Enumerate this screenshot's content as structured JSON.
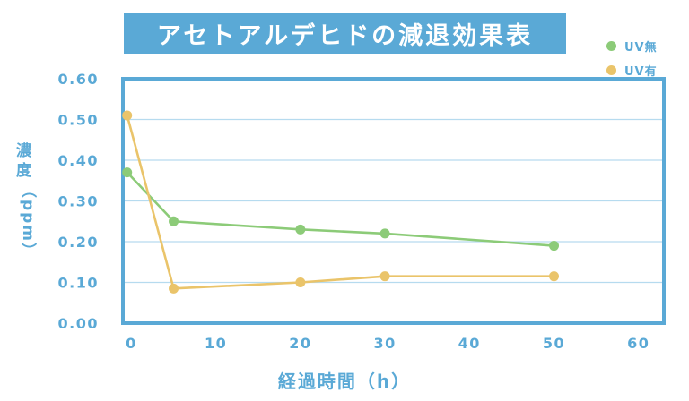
{
  "chart_data": {
    "type": "line",
    "title": "アセトアルデヒドの減退効果表",
    "xlabel": "経過時間（h）",
    "ylabel": {
      "main": "濃度",
      "unit": "（ppm）"
    },
    "xlim": [
      -1,
      63
    ],
    "ylim": [
      0,
      0.6
    ],
    "x_ticks": [
      0,
      10,
      20,
      30,
      40,
      50,
      60
    ],
    "x_tick_labels": [
      "0",
      "10",
      "20",
      "30",
      "40",
      "50",
      "60"
    ],
    "y_ticks": [
      0,
      0.1,
      0.2,
      0.3,
      0.4,
      0.5,
      0.6
    ],
    "y_tick_labels": [
      "0.00",
      "0.10",
      "0.20",
      "0.30",
      "0.40",
      "0.50",
      "0.60"
    ],
    "grid": "horizontal",
    "legend_position": "top-right",
    "series": [
      {
        "name": "UV無",
        "color": "#8ccb78",
        "x": [
          -0.5,
          5,
          20,
          30,
          50
        ],
        "y": [
          0.37,
          0.25,
          0.23,
          0.22,
          0.19
        ]
      },
      {
        "name": "UV有",
        "color": "#eac46a",
        "x": [
          -0.5,
          5,
          20,
          30,
          50
        ],
        "y": [
          0.51,
          0.085,
          0.1,
          0.115,
          0.115
        ]
      }
    ]
  },
  "colors": {
    "accent": "#5aa9d6",
    "frame": "#5aa9d6",
    "grid": "#b6dbef"
  }
}
